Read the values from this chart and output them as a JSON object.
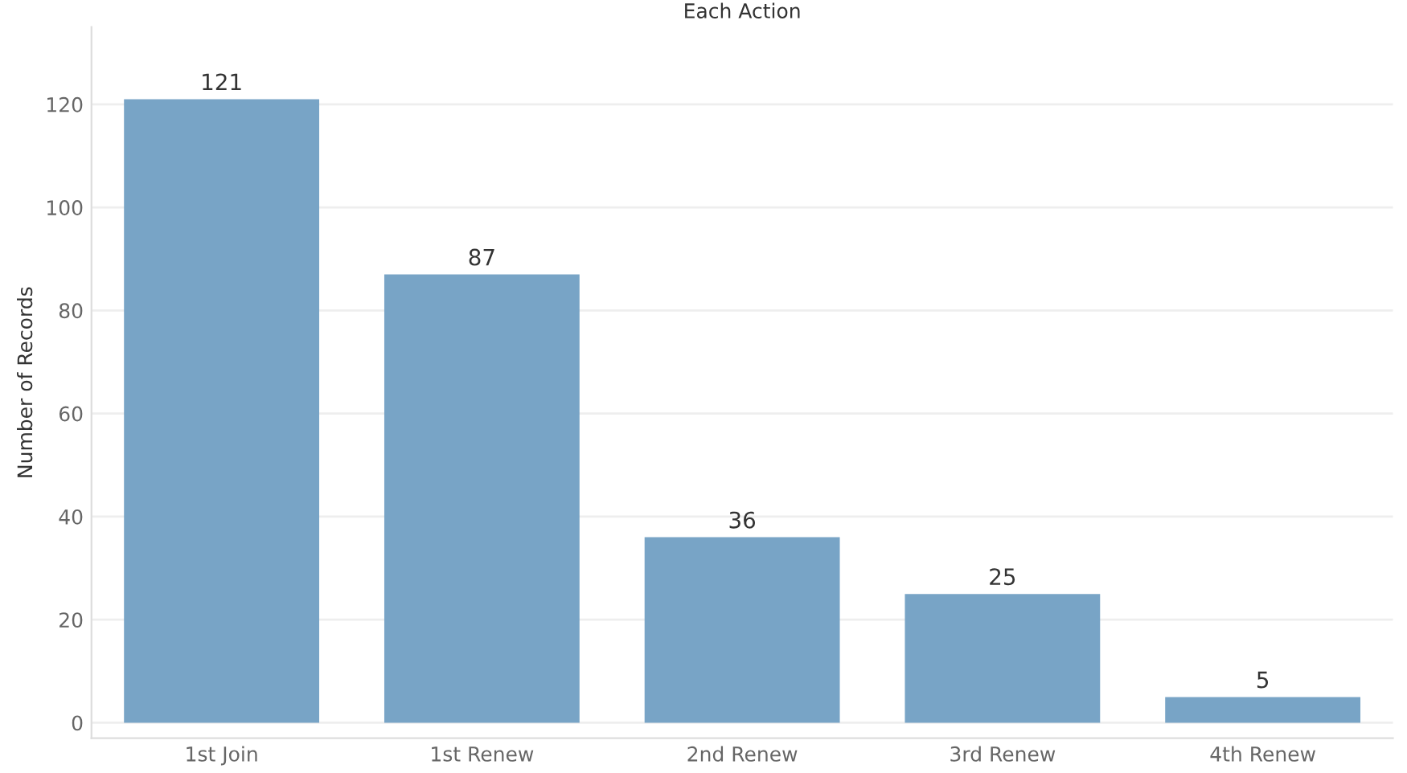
{
  "chart_data": {
    "type": "bar",
    "title": "Each Action",
    "ylabel": "Number of Records",
    "categories": [
      "1st Join",
      "1st Renew",
      "2nd Renew",
      "3rd Renew",
      "4th Renew"
    ],
    "values": [
      121,
      87,
      36,
      25,
      5
    ],
    "color": "#78a4c6",
    "ylim": [
      -3,
      135
    ],
    "yticks": [
      0,
      20,
      40,
      60,
      80,
      100,
      120
    ],
    "grid": "y",
    "data_labels": true
  }
}
